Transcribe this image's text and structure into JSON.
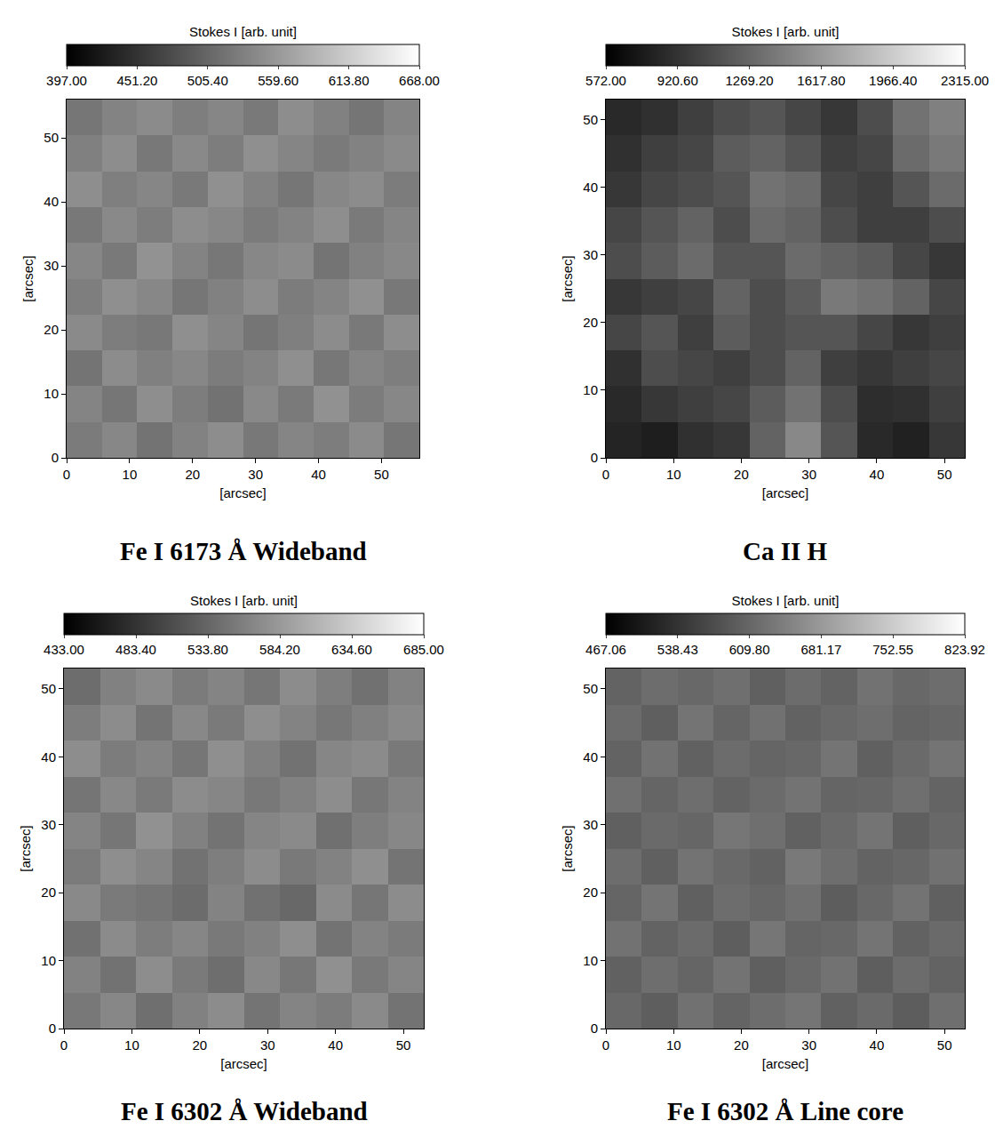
{
  "chart_data": [
    {
      "type": "heatmap",
      "title": "Fe I 6173 Å Wideband",
      "x_label": "[arcsec]",
      "y_label": "[arcsec]",
      "xlim": [
        0,
        56
      ],
      "ylim": [
        0,
        56
      ],
      "xticks": [
        0,
        10,
        20,
        30,
        40,
        50
      ],
      "yticks": [
        0,
        10,
        20,
        30,
        40,
        50
      ],
      "color": "gray",
      "x": [
        0,
        5.6,
        11.2,
        16.8,
        22.4,
        28,
        33.6,
        39.2,
        44.8,
        50.4,
        56
      ],
      "y": [
        0,
        5.6,
        11.2,
        16.8,
        22.4,
        28,
        33.6,
        39.2,
        44.8,
        50.4,
        56
      ],
      "z": [
        [
          528,
          541,
          519,
          535,
          547,
          524,
          538,
          530,
          545,
          522
        ],
        [
          537,
          522,
          548,
          530,
          518,
          543,
          527,
          551,
          529,
          540
        ],
        [
          520,
          546,
          533,
          541,
          529,
          536,
          549,
          523,
          538,
          531
        ],
        [
          544,
          530,
          525,
          549,
          538,
          521,
          532,
          546,
          526,
          547
        ],
        [
          531,
          549,
          540,
          522,
          534,
          547,
          529,
          537,
          550,
          524
        ],
        [
          539,
          526,
          552,
          536,
          523,
          540,
          545,
          520,
          534,
          542
        ],
        [
          525,
          543,
          530,
          547,
          541,
          528,
          536,
          548,
          527,
          538
        ],
        [
          548,
          532,
          539,
          526,
          550,
          535,
          522,
          541,
          546,
          529
        ],
        [
          533,
          547,
          524,
          543,
          530,
          549,
          538,
          527,
          535,
          544
        ],
        [
          522,
          536,
          545,
          531,
          539,
          526,
          547,
          534,
          521,
          537
        ]
      ],
      "colorbar": {
        "title": "Stokes I [arb. unit]",
        "range": [
          397,
          668
        ],
        "ticks": [
          {
            "value": 397,
            "label": "397.00"
          },
          {
            "value": 451.2,
            "label": "451.20"
          },
          {
            "value": 505.4,
            "label": "505.40"
          },
          {
            "value": 559.6,
            "label": "559.60"
          },
          {
            "value": 613.8,
            "label": "613.80"
          },
          {
            "value": 668,
            "label": "668.00"
          }
        ]
      }
    },
    {
      "type": "heatmap",
      "title": "Ca II H",
      "x_label": "[arcsec]",
      "y_label": "[arcsec]",
      "xlim": [
        0,
        53
      ],
      "ylim": [
        0,
        53
      ],
      "xticks": [
        0,
        10,
        20,
        30,
        40,
        50
      ],
      "yticks": [
        0,
        10,
        20,
        30,
        40,
        50
      ],
      "color": "gray",
      "x": [
        0,
        5.3,
        10.6,
        15.9,
        21.2,
        26.5,
        31.8,
        37.1,
        42.4,
        47.7,
        53
      ],
      "y": [
        0,
        5.3,
        10.6,
        15.9,
        21.2,
        26.5,
        31.8,
        37.1,
        42.4,
        47.7,
        53
      ],
      "z": [
        [
          820,
          780,
          900,
          950,
          1250,
          1500,
          1150,
          850,
          800,
          950
        ],
        [
          850,
          950,
          1000,
          1050,
          1200,
          1350,
          1100,
          880,
          900,
          1000
        ],
        [
          900,
          1100,
          1050,
          1000,
          1100,
          1250,
          1000,
          950,
          1000,
          1050
        ],
        [
          1050,
          1150,
          1000,
          1200,
          1100,
          1150,
          1150,
          1050,
          950,
          1000
        ],
        [
          950,
          1000,
          1050,
          1250,
          1100,
          1200,
          1400,
          1350,
          1250,
          1050
        ],
        [
          1100,
          1200,
          1300,
          1150,
          1150,
          1300,
          1250,
          1200,
          1050,
          950
        ],
        [
          1050,
          1150,
          1250,
          1100,
          1300,
          1250,
          1100,
          1000,
          1000,
          1100
        ],
        [
          950,
          1050,
          1100,
          1150,
          1350,
          1300,
          1050,
          1000,
          1150,
          1300
        ],
        [
          900,
          1000,
          1050,
          1200,
          1250,
          1150,
          1000,
          1050,
          1300,
          1400
        ],
        [
          850,
          900,
          1000,
          1100,
          1150,
          1050,
          950,
          1100,
          1350,
          1450
        ]
      ],
      "colorbar": {
        "title": "Stokes I [arb. unit]",
        "range": [
          572,
          2315
        ],
        "ticks": [
          {
            "value": 572,
            "label": "572.00"
          },
          {
            "value": 920.6,
            "label": "920.60"
          },
          {
            "value": 1269.2,
            "label": "1269.20"
          },
          {
            "value": 1617.8,
            "label": "1617.80"
          },
          {
            "value": 1966.4,
            "label": "1966.40"
          },
          {
            "value": 2315,
            "label": "2315.00"
          }
        ]
      }
    },
    {
      "type": "heatmap",
      "title": "Fe I 6302 Å Wideband",
      "x_label": "[arcsec]",
      "y_label": "[arcsec]",
      "xlim": [
        0,
        53
      ],
      "ylim": [
        0,
        53
      ],
      "xticks": [
        0,
        10,
        20,
        30,
        40,
        50
      ],
      "yticks": [
        0,
        10,
        20,
        30,
        40,
        50
      ],
      "color": "gray",
      "x": [
        0,
        5.3,
        10.6,
        15.9,
        21.2,
        26.5,
        31.8,
        37.1,
        42.4,
        47.7,
        53
      ],
      "y": [
        0,
        5.3,
        10.6,
        15.9,
        21.2,
        26.5,
        31.8,
        37.1,
        42.4,
        47.7,
        53
      ],
      "z": [
        [
          552,
          566,
          543,
          560,
          571,
          548,
          563,
          556,
          569,
          547
        ],
        [
          561,
          546,
          572,
          554,
          542,
          567,
          551,
          575,
          553,
          564
        ],
        [
          545,
          570,
          557,
          565,
          553,
          560,
          573,
          547,
          562,
          555
        ],
        [
          568,
          554,
          549,
          540,
          562,
          545,
          536,
          570,
          550,
          571
        ],
        [
          555,
          573,
          564,
          546,
          558,
          571,
          553,
          561,
          574,
          548
        ],
        [
          563,
          550,
          576,
          560,
          547,
          564,
          569,
          544,
          558,
          566
        ],
        [
          549,
          567,
          554,
          571,
          565,
          552,
          560,
          572,
          551,
          562
        ],
        [
          572,
          556,
          563,
          550,
          574,
          559,
          546,
          565,
          570,
          553
        ],
        [
          557,
          571,
          548,
          567,
          554,
          573,
          562,
          551,
          559,
          568
        ],
        [
          541,
          560,
          569,
          555,
          563,
          550,
          571,
          558,
          545,
          561
        ]
      ],
      "colorbar": {
        "title": "Stokes I [arb. unit]",
        "range": [
          433,
          685
        ],
        "ticks": [
          {
            "value": 433,
            "label": "433.00"
          },
          {
            "value": 483.4,
            "label": "483.40"
          },
          {
            "value": 533.8,
            "label": "533.80"
          },
          {
            "value": 584.2,
            "label": "584.20"
          },
          {
            "value": 634.6,
            "label": "634.60"
          },
          {
            "value": 685,
            "label": "685.00"
          }
        ]
      }
    },
    {
      "type": "heatmap",
      "title": "Fe I 6302 Å Line core",
      "x_label": "[arcsec]",
      "y_label": "[arcsec]",
      "xlim": [
        0,
        53
      ],
      "ylim": [
        0,
        53
      ],
      "xticks": [
        0,
        10,
        20,
        30,
        40,
        50
      ],
      "yticks": [
        0,
        10,
        20,
        30,
        40,
        50
      ],
      "color": "gray",
      "x": [
        0,
        5.3,
        10.6,
        15.9,
        21.2,
        26.5,
        31.8,
        37.1,
        42.4,
        47.7,
        53
      ],
      "y": [
        0,
        5.3,
        10.6,
        15.9,
        21.2,
        26.5,
        31.8,
        37.1,
        42.4,
        47.7,
        53
      ],
      "z": [
        [
          612,
          598,
          625,
          607,
          619,
          631,
          603,
          615,
          597,
          622
        ],
        [
          603,
          621,
          609,
          628,
          600,
          614,
          626,
          599,
          618,
          606
        ],
        [
          627,
          605,
          617,
          599,
          632,
          608,
          612,
          630,
          604,
          616
        ],
        [
          609,
          629,
          601,
          620,
          611,
          624,
          597,
          613,
          628,
          601
        ],
        [
          619,
          602,
          628,
          614,
          604,
          636,
          621,
          606,
          611,
          625
        ],
        [
          601,
          616,
          610,
          632,
          622,
          603,
          615,
          629,
          600,
          613
        ],
        [
          624,
          608,
          621,
          605,
          617,
          628,
          608,
          611,
          623,
          607
        ],
        [
          606,
          626,
          603,
          618,
          609,
          612,
          630,
          602,
          616,
          629
        ],
        [
          617,
          600,
          629,
          608,
          625,
          604,
          614,
          621,
          607,
          611
        ],
        [
          605,
          620,
          612,
          623,
          601,
          618,
          606,
          627,
          613,
          620
        ]
      ],
      "colorbar": {
        "title": "Stokes I [arb. unit]",
        "range": [
          467.06,
          823.92
        ],
        "ticks": [
          {
            "value": 467.06,
            "label": "467.06"
          },
          {
            "value": 538.43,
            "label": "538.43"
          },
          {
            "value": 609.8,
            "label": "609.80"
          },
          {
            "value": 681.17,
            "label": "681.17"
          },
          {
            "value": 752.55,
            "label": "752.55"
          },
          {
            "value": 823.92,
            "label": "823.92"
          }
        ]
      }
    }
  ]
}
